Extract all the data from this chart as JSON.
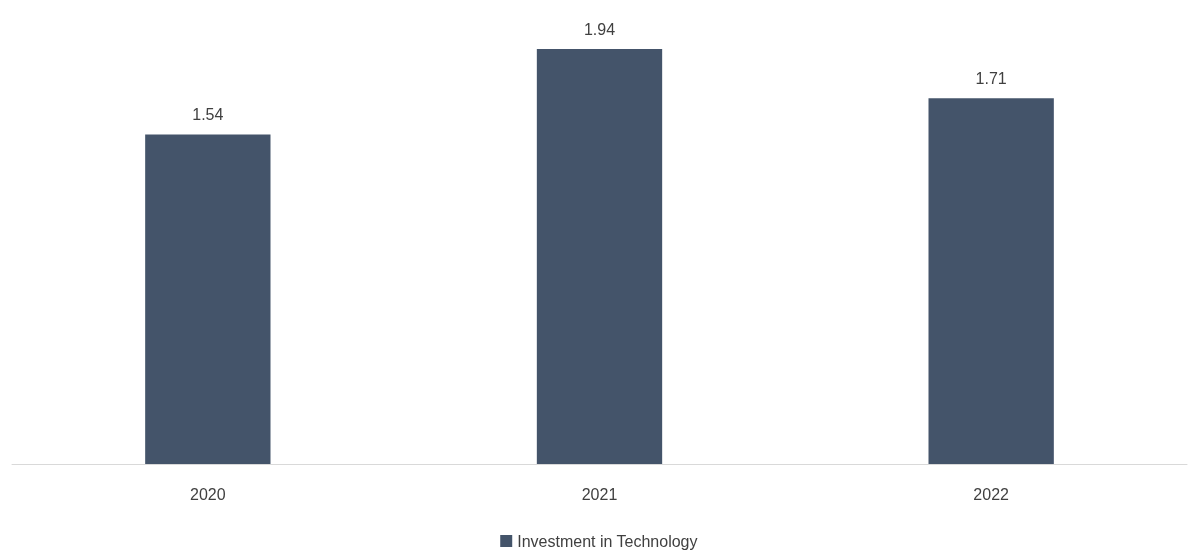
{
  "chart_data": {
    "type": "bar",
    "categories": [
      "2020",
      "2021",
      "2022"
    ],
    "series": [
      {
        "name": "Investment in Technology",
        "color": "#44546a",
        "values": [
          1.54,
          1.94,
          1.71
        ]
      }
    ],
    "data_labels": true,
    "legend": "bottom"
  }
}
